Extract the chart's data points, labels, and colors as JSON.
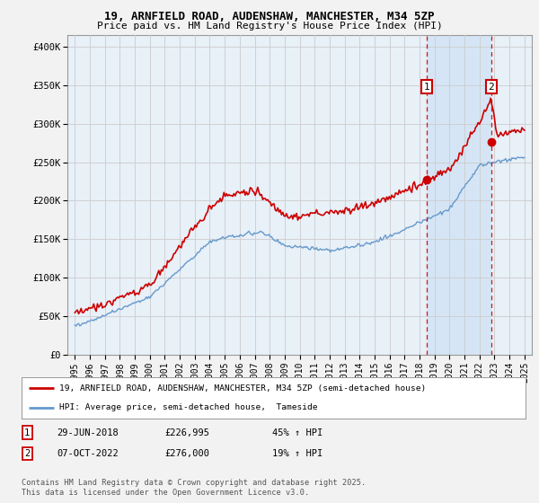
{
  "title1": "19, ARNFIELD ROAD, AUDENSHAW, MANCHESTER, M34 5ZP",
  "title2": "Price paid vs. HM Land Registry's House Price Index (HPI)",
  "ylabel_ticks": [
    "£0",
    "£50K",
    "£100K",
    "£150K",
    "£200K",
    "£250K",
    "£300K",
    "£350K",
    "£400K"
  ],
  "ytick_values": [
    0,
    50000,
    100000,
    150000,
    200000,
    250000,
    300000,
    350000,
    400000
  ],
  "ylim": [
    0,
    415000
  ],
  "xlim_start": 1994.5,
  "xlim_end": 2025.5,
  "background_plot": "#e8f0f8",
  "background_fig": "#f2f2f2",
  "background_shade": "#d5e5f5",
  "grid_color": "#cccccc",
  "red_line_color": "#cc0000",
  "blue_line_color": "#6699cc",
  "transaction1_date": "29-JUN-2018",
  "transaction1_price": 226995,
  "transaction1_hpi": "45% ↑ HPI",
  "transaction1_year": 2018.49,
  "transaction2_date": "07-OCT-2022",
  "transaction2_price": 276000,
  "transaction2_hpi": "19% ↑ HPI",
  "transaction2_year": 2022.77,
  "legend_label1": "19, ARNFIELD ROAD, AUDENSHAW, MANCHESTER, M34 5ZP (semi-detached house)",
  "legend_label2": "HPI: Average price, semi-detached house,  Tameside",
  "footer": "Contains HM Land Registry data © Crown copyright and database right 2025.\nThis data is licensed under the Open Government Licence v3.0.",
  "xtick_years": [
    1995,
    1996,
    1997,
    1998,
    1999,
    2000,
    2001,
    2002,
    2003,
    2004,
    2005,
    2006,
    2007,
    2008,
    2009,
    2010,
    2011,
    2012,
    2013,
    2014,
    2015,
    2016,
    2017,
    2018,
    2019,
    2020,
    2021,
    2022,
    2023,
    2024,
    2025
  ]
}
